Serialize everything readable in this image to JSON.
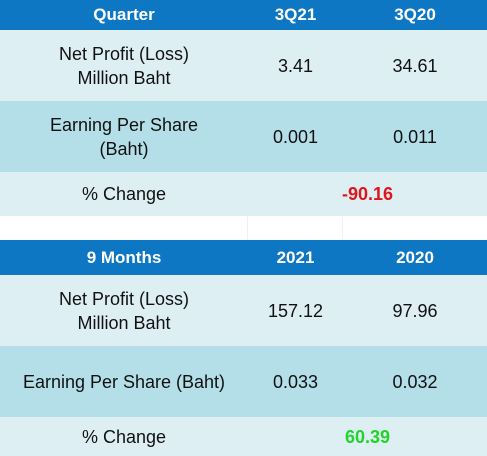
{
  "quarter_table": {
    "header": {
      "label": "Quarter",
      "col1": "3Q21",
      "col2": "3Q20"
    },
    "rows": [
      {
        "label_line1": "Net Profit (Loss)",
        "label_line2": "Million Baht",
        "col1": "3.41",
        "col2": "34.61"
      },
      {
        "label_line1": "Earning Per Share",
        "label_line2": "(Baht)",
        "col1": "0.001",
        "col2": "0.011"
      }
    ],
    "change": {
      "label": "% Change",
      "value": "-90.16",
      "value_color": "#e0141a"
    }
  },
  "nine_months_table": {
    "header": {
      "label": "9 Months",
      "col1": "2021",
      "col2": "2020"
    },
    "rows": [
      {
        "label_line1": "Net Profit (Loss)",
        "label_line2": "Million Baht",
        "col1": "157.12",
        "col2": "97.96"
      },
      {
        "label": "Earning Per Share (Baht)",
        "col1": "0.033",
        "col2": "0.032"
      }
    ],
    "change": {
      "label": "% Change",
      "value": "60.39",
      "value_color": "#22d32a"
    }
  },
  "colors": {
    "header_bg": "#0e77c4",
    "row_light": "#deeff4",
    "row_dark": "#b4dfe9"
  }
}
